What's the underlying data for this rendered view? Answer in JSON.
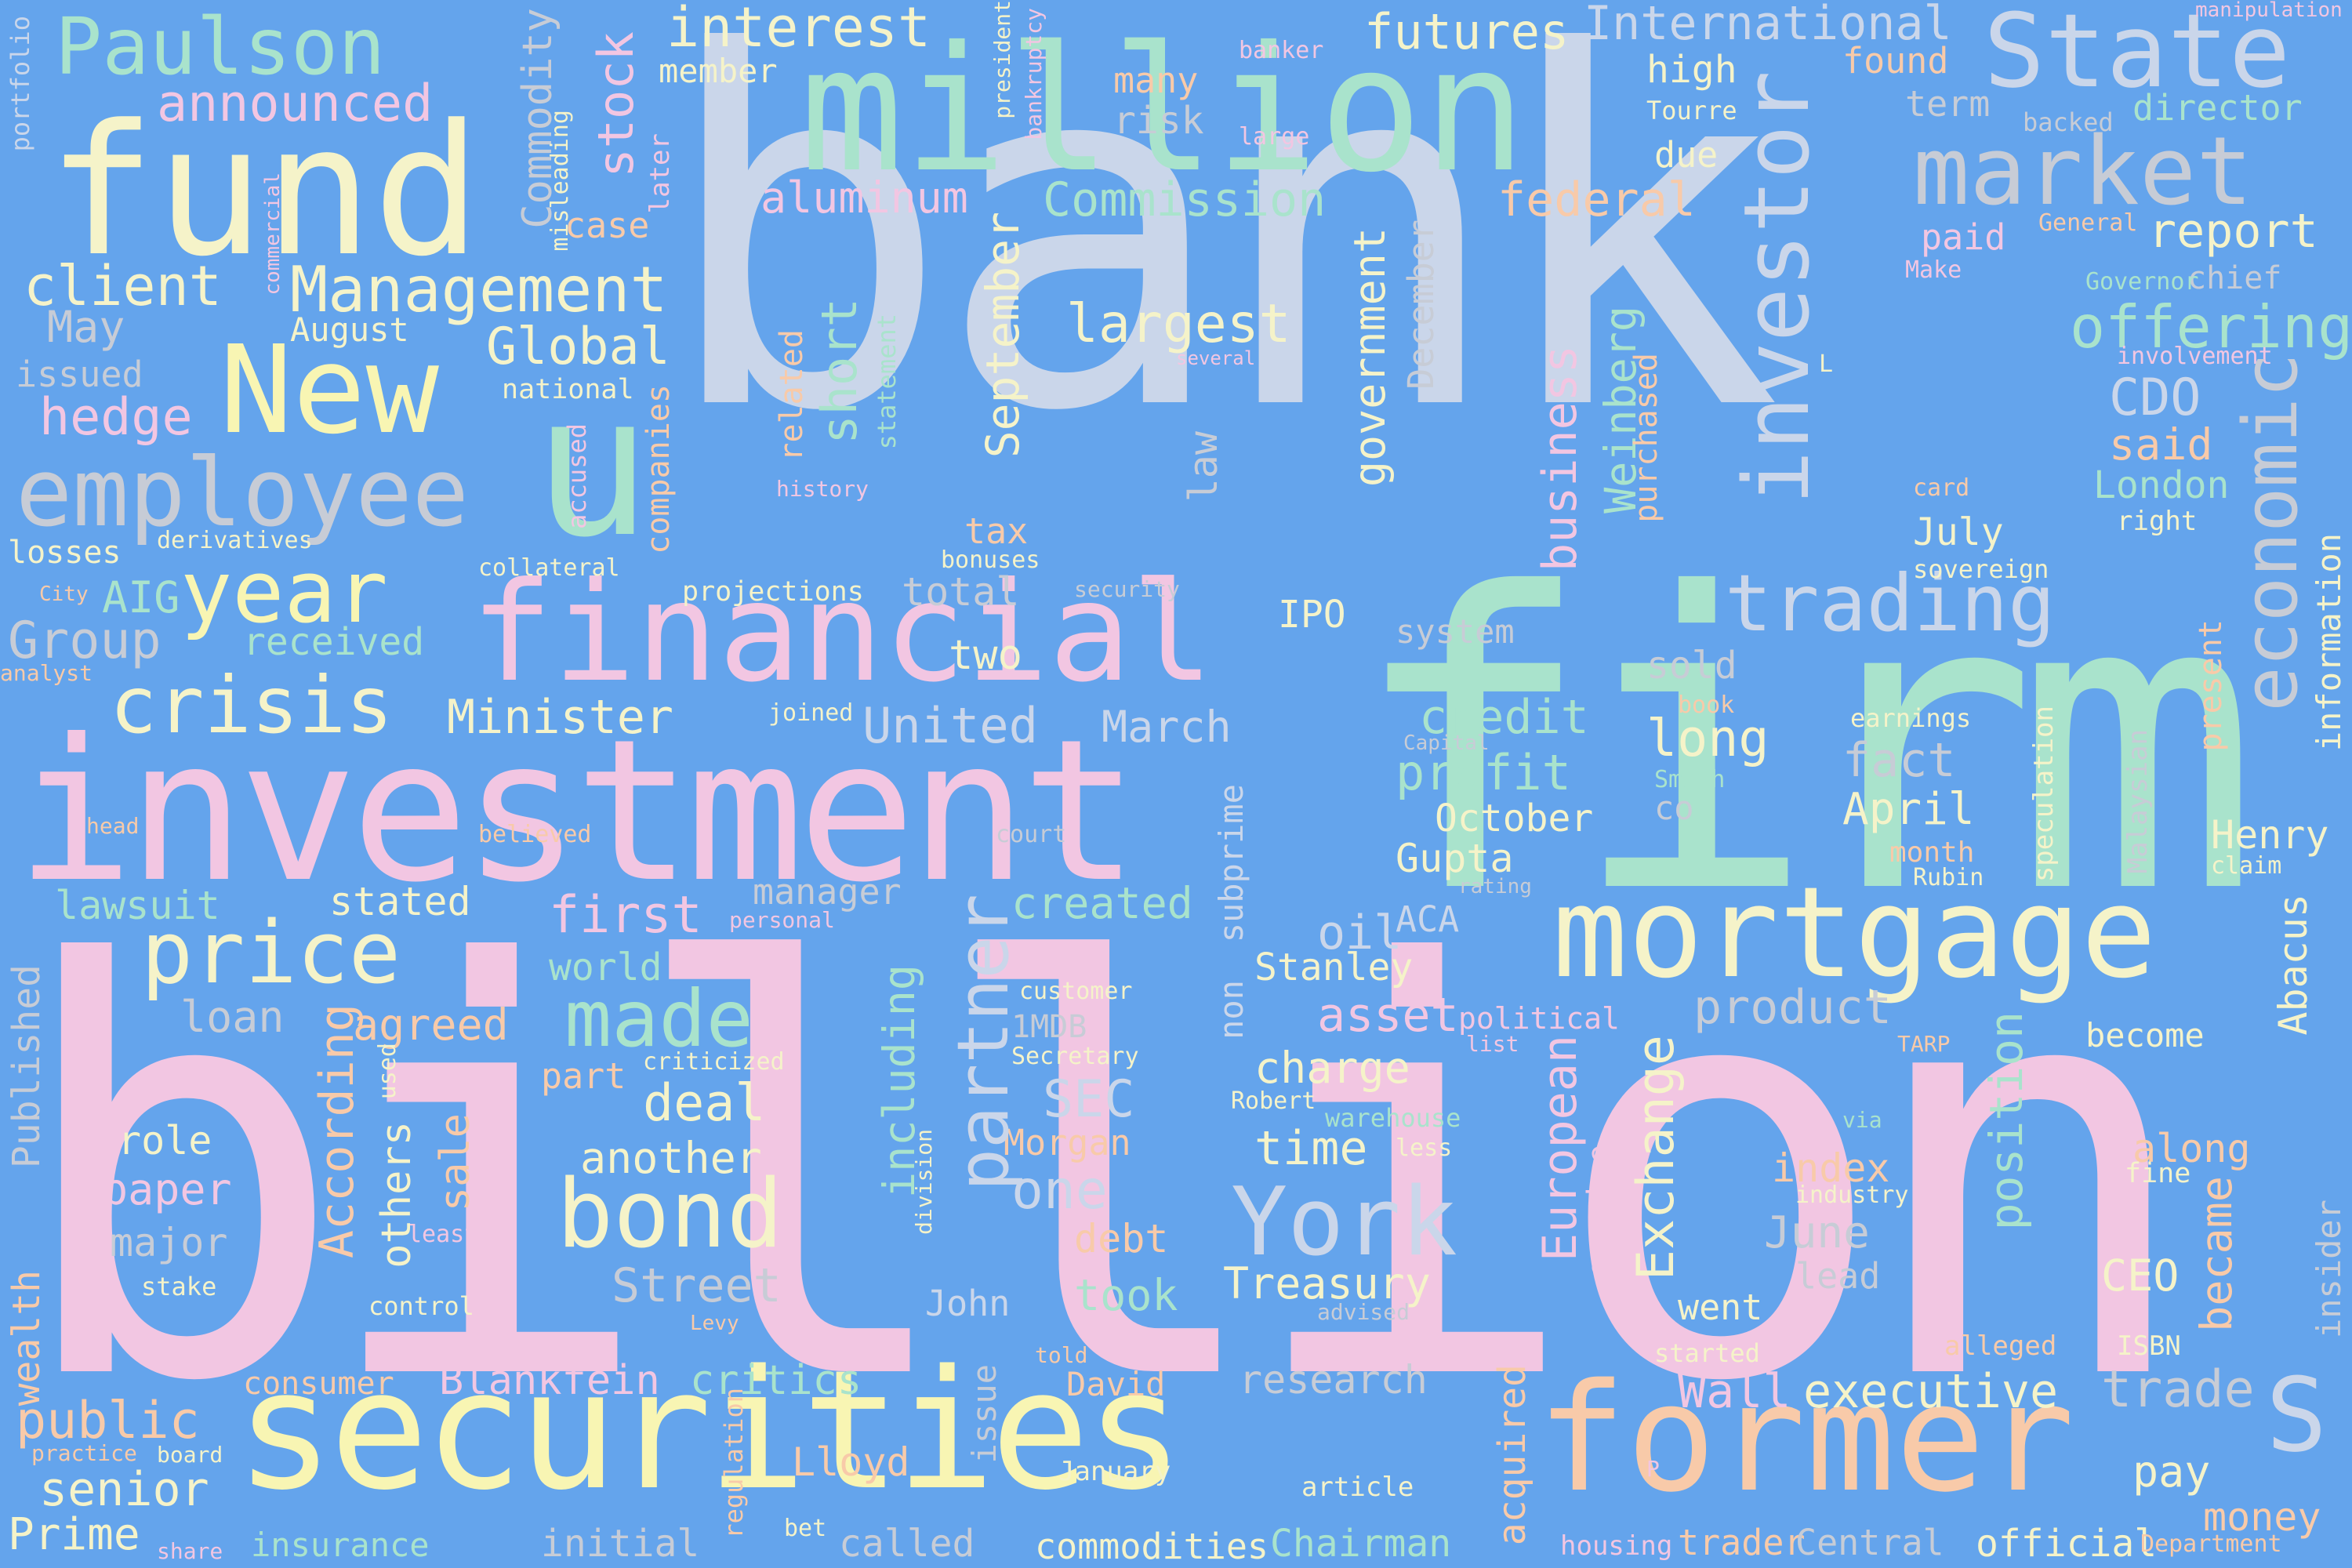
{
  "palette": {
    "background": "#64a4ec",
    "pink": "#f2c6e2",
    "lavender": "#cad6ea",
    "mint": "#a9e3cc",
    "yellow": "#f8f5b3",
    "cream": "#f5f3c9",
    "peach": "#f8caa9",
    "grey": "#c7ccd6"
  },
  "words": [
    {
      "text": "bank",
      "color": "#cad6ea"
    },
    {
      "text": "billion",
      "color": "#f2c6e2"
    },
    {
      "text": "firm",
      "color": "#a9e3cc"
    },
    {
      "text": "investment",
      "color": "#f2c6e2"
    },
    {
      "text": "million",
      "color": "#a9e3cc"
    },
    {
      "text": "fund",
      "color": "#f5f3c9"
    },
    {
      "text": "securities",
      "color": "#f8f5b3"
    },
    {
      "text": "former",
      "color": "#f8caa9"
    },
    {
      "text": "mortgage",
      "color": "#f5f3c9"
    },
    {
      "text": "financial",
      "color": "#f2c6e2"
    },
    {
      "text": "New",
      "color": "#f8f5b3"
    },
    {
      "text": "employee",
      "color": "#c7ccd6"
    },
    {
      "text": "u",
      "color": "#a9e3cc"
    },
    {
      "text": "State",
      "color": "#cad6ea"
    },
    {
      "text": "market",
      "color": "#c7ccd6"
    },
    {
      "text": "investor",
      "color": "#cad6ea"
    },
    {
      "text": "trading",
      "color": "#c7ccd6"
    },
    {
      "text": "economic",
      "color": "#cad6ea"
    },
    {
      "text": "bond",
      "color": "#f5f3c9"
    },
    {
      "text": "price",
      "color": "#f5f3c9"
    },
    {
      "text": "York",
      "color": "#cad6ea"
    },
    {
      "text": "Paulson",
      "color": "#a9e3cc"
    },
    {
      "text": "year",
      "color": "#f8f5b3"
    },
    {
      "text": "crisis",
      "color": "#f5f3c9"
    },
    {
      "text": "made",
      "color": "#a9e3cc"
    },
    {
      "text": "partner",
      "color": "#cad6ea"
    },
    {
      "text": "offering",
      "color": "#a9e3cc"
    },
    {
      "text": "S",
      "color": "#cad6ea"
    },
    {
      "text": "Management",
      "color": "#f5f3c9"
    },
    {
      "text": "client",
      "color": "#f5f3c9"
    },
    {
      "text": "announced",
      "color": "#f2c6e2"
    },
    {
      "text": "interest",
      "color": "#f5f3c9"
    },
    {
      "text": "International",
      "color": "#cad6ea"
    },
    {
      "text": "futures",
      "color": "#f5f3c9"
    },
    {
      "text": "stock",
      "color": "#f2c6e2"
    },
    {
      "text": "Commodity",
      "color": "#c7ccd6"
    },
    {
      "text": "Commission",
      "color": "#a9e3cc"
    },
    {
      "text": "aluminum",
      "color": "#f2c6e2"
    },
    {
      "text": "report",
      "color": "#f5f3c9"
    },
    {
      "text": "federal",
      "color": "#f8caa9"
    },
    {
      "text": "largest",
      "color": "#f5f3c9"
    },
    {
      "text": "Global",
      "color": "#f5f3c9"
    },
    {
      "text": "hedge",
      "color": "#f2c6e2"
    },
    {
      "text": "Group",
      "color": "#c7ccd6"
    },
    {
      "text": "AIG",
      "color": "#a9e3cc"
    },
    {
      "text": "received",
      "color": "#a9e3cc"
    },
    {
      "text": "Minister",
      "color": "#f5f3c9"
    },
    {
      "text": "United",
      "color": "#cad6ea"
    },
    {
      "text": "March",
      "color": "#cad6ea"
    },
    {
      "text": "credit",
      "color": "#a9e3cc"
    },
    {
      "text": "profit",
      "color": "#a9e3cc"
    },
    {
      "text": "October",
      "color": "#f5f3c9"
    },
    {
      "text": "Gupta",
      "color": "#f5f3c9"
    },
    {
      "text": "long",
      "color": "#f5f3c9"
    },
    {
      "text": "fact",
      "color": "#c7ccd6"
    },
    {
      "text": "April",
      "color": "#f5f3c9"
    },
    {
      "text": "CDO",
      "color": "#cad6ea"
    },
    {
      "text": "said",
      "color": "#f8caa9"
    },
    {
      "text": "London",
      "color": "#a9e3cc"
    },
    {
      "text": "July",
      "color": "#f5f3c9"
    },
    {
      "text": "IPO",
      "color": "#f5f3c9"
    },
    {
      "text": "system",
      "color": "#c7ccd6"
    },
    {
      "text": "sold",
      "color": "#c7ccd6"
    },
    {
      "text": "first",
      "color": "#f2c6e2"
    },
    {
      "text": "created",
      "color": "#a9e3cc"
    },
    {
      "text": "manager",
      "color": "#c7ccd6"
    },
    {
      "text": "oil",
      "color": "#cad6ea"
    },
    {
      "text": "ACA",
      "color": "#cad6ea"
    },
    {
      "text": "Stanley",
      "color": "#f5f3c9"
    },
    {
      "text": "asset",
      "color": "#f2c6e2"
    },
    {
      "text": "product",
      "color": "#c7ccd6"
    },
    {
      "text": "charge",
      "color": "#f5f3c9"
    },
    {
      "text": "time",
      "color": "#f5f3c9"
    },
    {
      "text": "deal",
      "color": "#f5f3c9"
    },
    {
      "text": "another",
      "color": "#f5f3c9"
    },
    {
      "text": "SEC",
      "color": "#cad6ea"
    },
    {
      "text": "Morgan",
      "color": "#f8caa9"
    },
    {
      "text": "one",
      "color": "#cad6ea"
    },
    {
      "text": "debt",
      "color": "#f8caa9"
    },
    {
      "text": "Street",
      "color": "#c7ccd6"
    },
    {
      "text": "took",
      "color": "#a9e3cc"
    },
    {
      "text": "John",
      "color": "#cad6ea"
    },
    {
      "text": "Treasury",
      "color": "#f5f3c9"
    },
    {
      "text": "went",
      "color": "#f5f3c9"
    },
    {
      "text": "CEO",
      "color": "#f5f3c9"
    },
    {
      "text": "index",
      "color": "#f8caa9"
    },
    {
      "text": "June",
      "color": "#c7ccd6"
    },
    {
      "text": "lead",
      "color": "#c7ccd6"
    },
    {
      "text": "become",
      "color": "#f5f3c9"
    },
    {
      "text": "along",
      "color": "#f8caa9"
    },
    {
      "text": "fine",
      "color": "#f5f3c9"
    },
    {
      "text": "Henry",
      "color": "#f5f3c9"
    },
    {
      "text": "claim",
      "color": "#f5f3c9"
    },
    {
      "text": "month",
      "color": "#f8caa9"
    },
    {
      "text": "Rubin",
      "color": "#f5f3c9"
    },
    {
      "text": "lawsuit",
      "color": "#a9e3cc"
    },
    {
      "text": "stated",
      "color": "#f5f3c9"
    },
    {
      "text": "loan",
      "color": "#c7ccd6"
    },
    {
      "text": "agreed",
      "color": "#f8caa9"
    },
    {
      "text": "role",
      "color": "#f5f3c9"
    },
    {
      "text": "paper",
      "color": "#f2c6e2"
    },
    {
      "text": "major",
      "color": "#c7ccd6"
    },
    {
      "text": "stake",
      "color": "#f5f3c9"
    },
    {
      "text": "control",
      "color": "#f5f3c9"
    },
    {
      "text": "world",
      "color": "#a9e3cc"
    },
    {
      "text": "part",
      "color": "#f8caa9"
    },
    {
      "text": "criticized",
      "color": "#f5f3c9"
    },
    {
      "text": "public",
      "color": "#f8caa9"
    },
    {
      "text": "senior",
      "color": "#f5f3c9"
    },
    {
      "text": "Prime",
      "color": "#f5f3c9"
    },
    {
      "text": "consumer",
      "color": "#f8caa9"
    },
    {
      "text": "Blankfein",
      "color": "#f2c6e2"
    },
    {
      "text": "critics",
      "color": "#a9e3cc"
    },
    {
      "text": "research",
      "color": "#c7ccd6"
    },
    {
      "text": "Wall",
      "color": "#f2c6e2"
    },
    {
      "text": "executive",
      "color": "#f5f3c9"
    },
    {
      "text": "trade",
      "color": "#c7ccd6"
    },
    {
      "text": "pay",
      "color": "#f5f3c9"
    },
    {
      "text": "money",
      "color": "#f8caa9"
    },
    {
      "text": "Lloyd",
      "color": "#f8caa9"
    },
    {
      "text": "David",
      "color": "#f8caa9"
    },
    {
      "text": "January",
      "color": "#f5f3c9"
    },
    {
      "text": "article",
      "color": "#f5f3c9"
    },
    {
      "text": "initial",
      "color": "#c7ccd6"
    },
    {
      "text": "called",
      "color": "#c7ccd6"
    },
    {
      "text": "commodities",
      "color": "#f5f3c9"
    },
    {
      "text": "Chairman",
      "color": "#a9e3cc"
    },
    {
      "text": "insurance",
      "color": "#a9e3cc"
    },
    {
      "text": "trader",
      "color": "#f8caa9"
    },
    {
      "text": "Central",
      "color": "#c7ccd6"
    },
    {
      "text": "official",
      "color": "#f5f3c9"
    },
    {
      "text": "housing",
      "color": "#f2c6e2"
    },
    {
      "text": "Department",
      "color": "#f8caa9"
    },
    {
      "text": "alleged",
      "color": "#f8caa9"
    },
    {
      "text": "ISBN",
      "color": "#f5f3c9"
    },
    {
      "text": "started",
      "color": "#f5f3c9"
    },
    {
      "text": "many",
      "color": "#f8caa9"
    },
    {
      "text": "risk",
      "color": "#c7ccd6"
    },
    {
      "text": "member",
      "color": "#f5f3c9"
    },
    {
      "text": "high",
      "color": "#f5f3c9"
    },
    {
      "text": "due",
      "color": "#f5f3c9"
    },
    {
      "text": "Tourre",
      "color": "#f5f3c9"
    },
    {
      "text": "found",
      "color": "#f8caa9"
    },
    {
      "text": "term",
      "color": "#c7ccd6"
    },
    {
      "text": "backed",
      "color": "#c7ccd6"
    },
    {
      "text": "director",
      "color": "#a9e3cc"
    },
    {
      "text": "paid",
      "color": "#f2c6e2"
    },
    {
      "text": "General",
      "color": "#f8caa9"
    },
    {
      "text": "chief",
      "color": "#c7ccd6"
    },
    {
      "text": "Make",
      "color": "#f2c6e2"
    },
    {
      "text": "Governor",
      "color": "#a9e3cc"
    },
    {
      "text": "involvement",
      "color": "#f2c6e2"
    },
    {
      "text": "right",
      "color": "#f5f3c9"
    },
    {
      "text": "card",
      "color": "#f8caa9"
    },
    {
      "text": "sovereign",
      "color": "#f5f3c9"
    },
    {
      "text": "banker",
      "color": "#f2c6e2"
    },
    {
      "text": "large",
      "color": "#f2c6e2"
    },
    {
      "text": "manipulation",
      "color": "#f2c6e2"
    },
    {
      "text": "May",
      "color": "#c7ccd6"
    },
    {
      "text": "issued",
      "color": "#c7ccd6"
    },
    {
      "text": "August",
      "color": "#f5f3c9"
    },
    {
      "text": "national",
      "color": "#f5f3c9"
    },
    {
      "text": "case",
      "color": "#f8caa9"
    },
    {
      "text": "losses",
      "color": "#f5f3c9"
    },
    {
      "text": "derivatives",
      "color": "#f5f3c9"
    },
    {
      "text": "collateral",
      "color": "#f5f3c9"
    },
    {
      "text": "City",
      "color": "#f8caa9"
    },
    {
      "text": "analyst",
      "color": "#f8caa9"
    },
    {
      "text": "projections",
      "color": "#f5f3c9"
    },
    {
      "text": "total",
      "color": "#c7ccd6"
    },
    {
      "text": "two",
      "color": "#f5f3c9"
    },
    {
      "text": "tax",
      "color": "#f8caa9"
    },
    {
      "text": "bonuses",
      "color": "#f5f3c9"
    },
    {
      "text": "security",
      "color": "#c7ccd6"
    },
    {
      "text": "joined",
      "color": "#f5f3c9"
    },
    {
      "text": "book",
      "color": "#f8caa9"
    },
    {
      "text": "earnings",
      "color": "#f5f3c9"
    },
    {
      "text": "Capital",
      "color": "#c7ccd6"
    },
    {
      "text": "Smith",
      "color": "#a9e3cc"
    },
    {
      "text": "co",
      "color": "#c7ccd6"
    },
    {
      "text": "head",
      "color": "#f8caa9"
    },
    {
      "text": "believed",
      "color": "#f8caa9"
    },
    {
      "text": "court",
      "color": "#c7ccd6"
    },
    {
      "text": "personal",
      "color": "#f2c6e2"
    },
    {
      "text": "rating",
      "color": "#c7ccd6"
    },
    {
      "text": "customer",
      "color": "#f5f3c9"
    },
    {
      "text": "1MDB",
      "color": "#c7ccd6"
    },
    {
      "text": "Secretary",
      "color": "#f5f3c9"
    },
    {
      "text": "political",
      "color": "#f2c6e2"
    },
    {
      "text": "list",
      "color": "#f2c6e2"
    },
    {
      "text": "TARP",
      "color": "#f8caa9"
    },
    {
      "text": "Robert",
      "color": "#f5f3c9"
    },
    {
      "text": "warehouse",
      "color": "#a9e3cc"
    },
    {
      "text": "less",
      "color": "#f5f3c9"
    },
    {
      "text": "via",
      "color": "#a9e3cc"
    },
    {
      "text": "industry",
      "color": "#f5f3c9"
    },
    {
      "text": "advised",
      "color": "#c7ccd6"
    },
    {
      "text": "Levy",
      "color": "#f8caa9"
    },
    {
      "text": "told",
      "color": "#f8caa9"
    },
    {
      "text": "bet",
      "color": "#f5f3c9"
    },
    {
      "text": "share",
      "color": "#f2c6e2"
    },
    {
      "text": "board",
      "color": "#f5f3c9"
    },
    {
      "text": "practice",
      "color": "#f8caa9"
    },
    {
      "text": "P",
      "color": "#f2c6e2"
    },
    {
      "text": "several",
      "color": "#f2c6e2"
    },
    {
      "text": "history",
      "color": "#f2c6e2"
    },
    {
      "text": "L",
      "color": "#f5f3c9"
    },
    {
      "text": "least",
      "color": "#f2c6e2"
    },
    {
      "text": "including",
      "color": "#a9e3cc"
    },
    {
      "text": "According",
      "color": "#f8caa9"
    },
    {
      "text": "others",
      "color": "#f5f3c9"
    },
    {
      "text": "sale",
      "color": "#f8caa9"
    },
    {
      "text": "used",
      "color": "#f5f3c9"
    },
    {
      "text": "Published",
      "color": "#c7ccd6"
    },
    {
      "text": "wealth",
      "color": "#f8caa9"
    },
    {
      "text": "portfolio",
      "color": "#cad6ea"
    },
    {
      "text": "commercial",
      "color": "#f2c6e2"
    },
    {
      "text": "misleading",
      "color": "#f5f3c9"
    },
    {
      "text": "later",
      "color": "#f2c6e2"
    },
    {
      "text": "president",
      "color": "#f5f3c9"
    },
    {
      "text": "bankruptcy",
      "color": "#f2c6e2"
    },
    {
      "text": "accused",
      "color": "#f2c6e2"
    },
    {
      "text": "companies",
      "color": "#f8caa9"
    },
    {
      "text": "related",
      "color": "#f8caa9"
    },
    {
      "text": "short",
      "color": "#a9e3cc"
    },
    {
      "text": "statement",
      "color": "#a9e3cc"
    },
    {
      "text": "September",
      "color": "#f5f3c9"
    },
    {
      "text": "government",
      "color": "#f5f3c9"
    },
    {
      "text": "December",
      "color": "#c7ccd6"
    },
    {
      "text": "law",
      "color": "#c7ccd6"
    },
    {
      "text": "business",
      "color": "#f2c6e2"
    },
    {
      "text": "Weinberg",
      "color": "#a9e3cc"
    },
    {
      "text": "purchased",
      "color": "#f8caa9"
    },
    {
      "text": "subprime",
      "color": "#cad6ea"
    },
    {
      "text": "non",
      "color": "#cad6ea"
    },
    {
      "text": "European",
      "color": "#f2c6e2"
    },
    {
      "text": "Exchange",
      "color": "#f5f3c9"
    },
    {
      "text": "service",
      "color": "#f2c6e2"
    },
    {
      "text": "position",
      "color": "#a9e3cc"
    },
    {
      "text": "speculation",
      "color": "#f5f3c9"
    },
    {
      "text": "Malaysian",
      "color": "#c7ccd6"
    },
    {
      "text": "present",
      "color": "#f8caa9"
    },
    {
      "text": "information",
      "color": "#f5f3c9"
    },
    {
      "text": "Abacus",
      "color": "#f5f3c9"
    },
    {
      "text": "became",
      "color": "#f8caa9"
    },
    {
      "text": "insider",
      "color": "#c7ccd6"
    },
    {
      "text": "division",
      "color": "#f5f3c9"
    },
    {
      "text": "issue",
      "color": "#c7ccd6"
    },
    {
      "text": "regulation",
      "color": "#f8caa9"
    },
    {
      "text": "acquired",
      "color": "#f8caa9"
    }
  ]
}
